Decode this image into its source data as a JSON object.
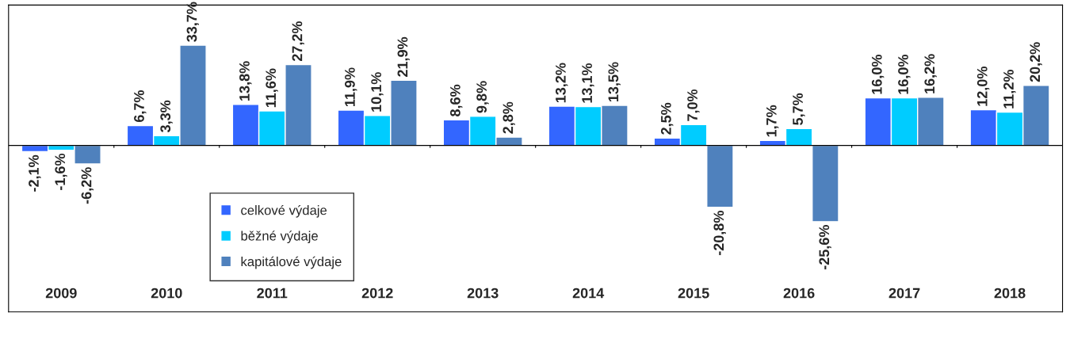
{
  "chart_data": {
    "type": "bar",
    "categories": [
      "2009",
      "2010",
      "2011",
      "2012",
      "2013",
      "2014",
      "2015",
      "2016",
      "2017",
      "2018"
    ],
    "series": [
      {
        "name": "celkové výdaje",
        "color": "#3366ff",
        "values": [
          -2.1,
          6.7,
          13.8,
          11.9,
          8.6,
          13.2,
          2.5,
          1.7,
          16.0,
          12.0
        ],
        "value_labels": [
          "-2,1%",
          "6,7%",
          "13,8%",
          "11,9%",
          "8,6%",
          "13,2%",
          "2,5%",
          "1,7%",
          "16,0%",
          "12,0%"
        ]
      },
      {
        "name": "běžné výdaje",
        "color": "#00ccff",
        "values": [
          -1.6,
          3.3,
          11.6,
          10.1,
          9.8,
          13.1,
          7.0,
          5.7,
          16.0,
          11.2
        ],
        "value_labels": [
          "-1,6%",
          "3,3%",
          "11,6%",
          "10,1%",
          "9,8%",
          "13,1%",
          "7,0%",
          "5,7%",
          "16,0%",
          "11,2%"
        ]
      },
      {
        "name": "kapitálové výdaje",
        "color": "#4f81bd",
        "values": [
          -6.2,
          33.7,
          27.2,
          21.9,
          2.8,
          13.5,
          -20.8,
          -25.6,
          16.2,
          20.2
        ],
        "value_labels": [
          "-6,2%",
          "33,7%",
          "27,2%",
          "21,9%",
          "2,8%",
          "13,5%",
          "-20,8%",
          "-25,6%",
          "16,2%",
          "20,2%"
        ]
      }
    ],
    "grid": false,
    "legend": "bottom left"
  }
}
